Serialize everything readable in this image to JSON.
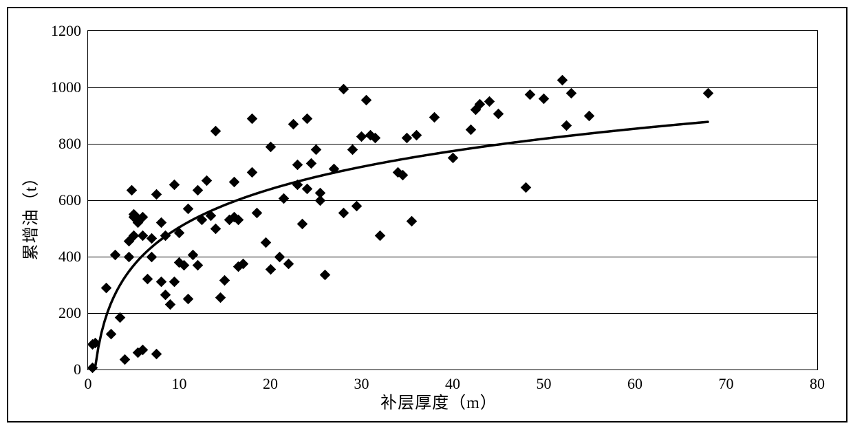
{
  "chart": {
    "type": "scatter",
    "xlabel": "补层厚度（m）",
    "ylabel": "累增油（t）",
    "label_fontsize": 24,
    "tick_fontsize": 22,
    "xlim": [
      0,
      80
    ],
    "ylim": [
      0,
      1200
    ],
    "xtick_step": 10,
    "ytick_step": 200,
    "xticks": [
      0,
      10,
      20,
      30,
      40,
      50,
      60,
      70,
      80
    ],
    "yticks": [
      0,
      200,
      400,
      600,
      800,
      1000,
      1200
    ],
    "background_color": "#ffffff",
    "border_color": "#000000",
    "grid_color": "#000000",
    "grid_on": true,
    "marker_style": "diamond",
    "marker_color": "#000000",
    "marker_size": 11,
    "fit_line_color": "#000000",
    "fit_line_width": 3.5,
    "fit_curve": {
      "type": "logarithmic",
      "a": 195,
      "b": 55,
      "x_start": 0.8,
      "x_end": 68
    },
    "points": [
      [
        0.5,
        5
      ],
      [
        0.5,
        90
      ],
      [
        0.8,
        95
      ],
      [
        2,
        290
      ],
      [
        2.5,
        125
      ],
      [
        3,
        405
      ],
      [
        3.5,
        185
      ],
      [
        4,
        35
      ],
      [
        4.5,
        455
      ],
      [
        4.5,
        400
      ],
      [
        4.8,
        635
      ],
      [
        5,
        550
      ],
      [
        5,
        475
      ],
      [
        5,
        540
      ],
      [
        5.2,
        545
      ],
      [
        5.5,
        520
      ],
      [
        5.5,
        60
      ],
      [
        6,
        475
      ],
      [
        6,
        540
      ],
      [
        6,
        70
      ],
      [
        6.5,
        320
      ],
      [
        7,
        400
      ],
      [
        7,
        465
      ],
      [
        7.5,
        620
      ],
      [
        7.5,
        55
      ],
      [
        8,
        520
      ],
      [
        8,
        310
      ],
      [
        8.5,
        475
      ],
      [
        8.5,
        265
      ],
      [
        9,
        230
      ],
      [
        9.5,
        655
      ],
      [
        9.5,
        310
      ],
      [
        10,
        485
      ],
      [
        10,
        380
      ],
      [
        10.5,
        370
      ],
      [
        11,
        570
      ],
      [
        11,
        250
      ],
      [
        11.5,
        405
      ],
      [
        12,
        635
      ],
      [
        12,
        370
      ],
      [
        12.5,
        530
      ],
      [
        13,
        670
      ],
      [
        13.5,
        545
      ],
      [
        14,
        500
      ],
      [
        14,
        845
      ],
      [
        14.5,
        255
      ],
      [
        15,
        315
      ],
      [
        15.5,
        530
      ],
      [
        16,
        665
      ],
      [
        16,
        540
      ],
      [
        16.5,
        530
      ],
      [
        16.5,
        365
      ],
      [
        17,
        375
      ],
      [
        18,
        890
      ],
      [
        18,
        700
      ],
      [
        18.5,
        555
      ],
      [
        19.5,
        450
      ],
      [
        20,
        790
      ],
      [
        20,
        355
      ],
      [
        21,
        400
      ],
      [
        21.5,
        605
      ],
      [
        22,
        375
      ],
      [
        22.5,
        870
      ],
      [
        23,
        655
      ],
      [
        23,
        725
      ],
      [
        23.5,
        515
      ],
      [
        24,
        640
      ],
      [
        24,
        890
      ],
      [
        24.5,
        730
      ],
      [
        25,
        780
      ],
      [
        25.5,
        625
      ],
      [
        25.5,
        600
      ],
      [
        26,
        335
      ],
      [
        27,
        710
      ],
      [
        28,
        995
      ],
      [
        28,
        555
      ],
      [
        29,
        780
      ],
      [
        29.5,
        580
      ],
      [
        30,
        825
      ],
      [
        30.5,
        955
      ],
      [
        31,
        830
      ],
      [
        31.5,
        820
      ],
      [
        32,
        475
      ],
      [
        34,
        700
      ],
      [
        34.5,
        690
      ],
      [
        35,
        820
      ],
      [
        35.5,
        525
      ],
      [
        36,
        830
      ],
      [
        38,
        895
      ],
      [
        40,
        750
      ],
      [
        42,
        850
      ],
      [
        42.5,
        920
      ],
      [
        43,
        940
      ],
      [
        44,
        950
      ],
      [
        45,
        905
      ],
      [
        48,
        645
      ],
      [
        48.5,
        975
      ],
      [
        50,
        960
      ],
      [
        52,
        1025
      ],
      [
        52.5,
        865
      ],
      [
        53,
        980
      ],
      [
        55,
        900
      ],
      [
        68,
        980
      ]
    ]
  }
}
